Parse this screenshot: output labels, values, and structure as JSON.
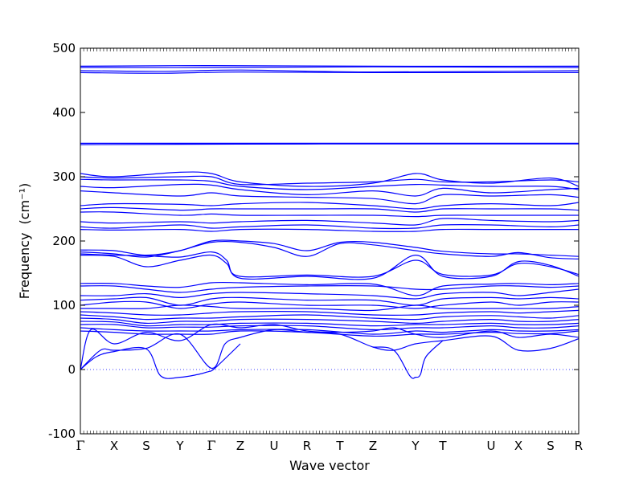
{
  "chart_data": {
    "type": "line",
    "title": "",
    "xlabel": "Wave vector",
    "ylabel": "Frequency",
    "ylabel_unit": "(cm⁻¹)",
    "ylim": [
      -100,
      500
    ],
    "yticks": [
      -100,
      0,
      100,
      200,
      300,
      400,
      500
    ],
    "xlim": [
      0,
      62
    ],
    "grid": false,
    "legend": "none",
    "line_color": "#0000ff",
    "zero_line": {
      "y": 0,
      "style": "dotted",
      "color": "#0000ff"
    },
    "high_symmetry_points": [
      {
        "label": "Γ",
        "x": 0
      },
      {
        "label": "X",
        "x": 4.2
      },
      {
        "label": "S",
        "x": 8.2
      },
      {
        "label": "Y",
        "x": 12.4
      },
      {
        "label": "Γ",
        "x": 16.3
      },
      {
        "label": "Z",
        "x": 19.9
      },
      {
        "label": "U",
        "x": 24.1
      },
      {
        "label": "R",
        "x": 28.2
      },
      {
        "label": "T",
        "x": 32.3
      },
      {
        "label": "Z",
        "x": 36.4
      },
      {
        "label": "Y",
        "x": 41.7
      },
      {
        "label": "T",
        "x": 45.1
      },
      {
        "label": "U",
        "x": 51.1
      },
      {
        "label": "X",
        "x": 54.5
      },
      {
        "label": "S",
        "x": 58.5
      },
      {
        "label": "R",
        "x": 62
      }
    ],
    "series": [
      {
        "x": [
          0,
          16.3,
          36.4,
          62
        ],
        "y": [
          472,
          473,
          472,
          472
        ]
      },
      {
        "x": [
          0,
          16.3,
          36.4,
          62
        ],
        "y": [
          470,
          470,
          471,
          470
        ]
      },
      {
        "x": [
          0,
          10,
          20,
          36.4,
          62
        ],
        "y": [
          465,
          464,
          466,
          463,
          465
        ]
      },
      {
        "x": [
          0,
          10,
          20,
          36.4,
          62
        ],
        "y": [
          462,
          461,
          463,
          462,
          462
        ]
      },
      {
        "x": [
          0,
          62
        ],
        "y": [
          352,
          352
        ]
      },
      {
        "x": [
          0,
          30,
          62
        ],
        "y": [
          350,
          351,
          351
        ]
      },
      {
        "x": [
          0,
          4.2,
          12.4,
          16.3,
          19.9,
          28.2,
          36.4,
          41.7,
          45.1,
          51.1,
          58.5,
          62
        ],
        "y": [
          305,
          300,
          307,
          305,
          292,
          285,
          290,
          305,
          295,
          290,
          298,
          285
        ]
      },
      {
        "x": [
          0,
          4.2,
          12.4,
          16.3,
          19.9,
          28.2,
          36.4,
          41.7,
          45.1,
          51.1,
          58.5,
          62
        ],
        "y": [
          300,
          298,
          300,
          300,
          288,
          290,
          292,
          296,
          292,
          292,
          295,
          292
        ]
      },
      {
        "x": [
          0,
          4.2,
          12.4,
          16.3,
          19.9,
          28.2,
          36.4,
          41.7,
          45.1,
          51.1,
          58.5,
          62
        ],
        "y": [
          296,
          295,
          295,
          293,
          285,
          280,
          285,
          288,
          287,
          285,
          285,
          280
        ]
      },
      {
        "x": [
          0,
          4.2,
          12.4,
          16.3,
          19.9,
          28.2,
          36.4,
          41.7,
          45.1,
          51.1,
          58.5,
          62
        ],
        "y": [
          285,
          283,
          288,
          287,
          280,
          272,
          278,
          270,
          282,
          275,
          280,
          282
        ]
      },
      {
        "x": [
          0,
          4.2,
          12.4,
          16.3,
          19.9,
          28.2,
          36.4,
          41.7,
          45.1,
          51.1,
          58.5,
          62
        ],
        "y": [
          278,
          275,
          270,
          275,
          270,
          268,
          266,
          258,
          272,
          270,
          272,
          268
        ]
      },
      {
        "x": [
          0,
          4.2,
          12.4,
          16.3,
          19.9,
          28.2,
          36.4,
          41.7,
          45.1,
          51.1,
          58.5,
          62
        ],
        "y": [
          255,
          258,
          257,
          255,
          258,
          260,
          255,
          250,
          255,
          258,
          255,
          260
        ]
      },
      {
        "x": [
          0,
          4.2,
          12.4,
          16.3,
          19.9,
          28.2,
          36.4,
          41.7,
          45.1,
          51.1,
          58.5,
          62
        ],
        "y": [
          250,
          252,
          248,
          250,
          250,
          250,
          250,
          245,
          250,
          250,
          250,
          248
        ]
      },
      {
        "x": [
          0,
          4.2,
          12.4,
          16.3,
          19.9,
          28.2,
          36.4,
          41.7,
          45.1,
          51.1,
          58.5,
          62
        ],
        "y": [
          245,
          245,
          240,
          242,
          240,
          240,
          240,
          238,
          240,
          240,
          240,
          240
        ]
      },
      {
        "x": [
          0,
          4.2,
          12.4,
          16.3,
          19.9,
          28.2,
          36.4,
          41.7,
          45.1,
          51.1,
          58.5,
          62
        ],
        "y": [
          230,
          228,
          230,
          228,
          230,
          232,
          228,
          225,
          235,
          232,
          230,
          232
        ]
      },
      {
        "x": [
          0,
          4.2,
          12.4,
          16.3,
          19.9,
          28.2,
          36.4,
          41.7,
          45.1,
          51.1,
          58.5,
          62
        ],
        "y": [
          222,
          220,
          225,
          220,
          222,
          225,
          220,
          220,
          225,
          225,
          222,
          225
        ]
      },
      {
        "x": [
          0,
          4.2,
          12.4,
          16.3,
          19.9,
          28.2,
          36.4,
          41.7,
          45.1,
          51.1,
          58.5,
          62
        ],
        "y": [
          218,
          217,
          218,
          215,
          218,
          218,
          215,
          215,
          218,
          218,
          218,
          218
        ]
      },
      {
        "x": [
          0,
          4.2,
          8.2,
          12.4,
          16.3,
          19.9,
          24.1,
          28.2,
          32.3,
          36.4,
          41.7,
          45.1,
          51.1,
          54.5,
          58.5,
          62
        ],
        "y": [
          186,
          185,
          178,
          185,
          200,
          200,
          196,
          185,
          198,
          198,
          190,
          184,
          180,
          180,
          178,
          176
        ]
      },
      {
        "x": [
          0,
          4.2,
          8.2,
          12.4,
          16.3,
          19.9,
          24.1,
          28.2,
          32.3,
          36.4,
          41.7,
          45.1,
          51.1,
          54.5,
          58.5,
          62
        ],
        "y": [
          183,
          180,
          175,
          185,
          198,
          198,
          190,
          176,
          196,
          194,
          185,
          180,
          176,
          182,
          174,
          172
        ]
      },
      {
        "x": [
          0,
          4.2,
          8.2,
          12.4,
          16.3,
          18.2,
          19.9,
          28.2,
          36.4,
          41.7,
          45.1,
          51.1,
          54.5,
          58.5,
          62
        ],
        "y": [
          180,
          178,
          177,
          175,
          183,
          170,
          142,
          145,
          142,
          178,
          145,
          145,
          168,
          162,
          145
        ]
      },
      {
        "x": [
          0,
          4.2,
          8.2,
          12.4,
          16.3,
          18.2,
          19.9,
          28.2,
          36.4,
          41.7,
          45.1,
          51.1,
          54.5,
          58.5,
          62
        ],
        "y": [
          178,
          176,
          160,
          170,
          178,
          165,
          145,
          147,
          145,
          170,
          148,
          147,
          165,
          160,
          148
        ]
      },
      {
        "x": [
          0,
          4.2,
          8.2,
          12.4,
          16.3,
          19.9,
          28.2,
          36.4,
          41.7,
          45.1,
          51.1,
          54.5,
          58.5,
          62
        ],
        "y": [
          134,
          134,
          130,
          128,
          135,
          135,
          132,
          133,
          115,
          130,
          133,
          134,
          132,
          134
        ]
      },
      {
        "x": [
          0,
          4.2,
          8.2,
          12.4,
          16.3,
          19.9,
          28.2,
          36.4,
          41.7,
          45.1,
          51.1,
          54.5,
          58.5,
          62
        ],
        "y": [
          130,
          130,
          125,
          120,
          125,
          128,
          130,
          130,
          125,
          125,
          130,
          130,
          128,
          130
        ]
      },
      {
        "x": [
          0,
          4.2,
          8.2,
          12.4,
          16.3,
          19.9,
          28.2,
          36.4,
          41.7,
          45.1,
          51.1,
          54.5,
          58.5,
          62
        ],
        "y": [
          115,
          115,
          118,
          112,
          118,
          120,
          118,
          115,
          110,
          118,
          120,
          115,
          120,
          125
        ]
      },
      {
        "x": [
          0,
          4.2,
          8.2,
          12.4,
          16.3,
          19.9,
          28.2,
          36.4,
          41.7,
          45.1,
          51.1,
          54.5,
          58.5,
          62
        ],
        "y": [
          108,
          110,
          112,
          100,
          110,
          112,
          108,
          108,
          100,
          110,
          112,
          110,
          112,
          110
        ]
      },
      {
        "x": [
          0,
          4.2,
          8.2,
          12.4,
          16.3,
          19.9,
          28.2,
          36.4,
          41.7,
          45.1,
          51.1,
          54.5,
          58.5,
          62
        ],
        "y": [
          100,
          105,
          105,
          95,
          102,
          105,
          100,
          100,
          95,
          100,
          105,
          100,
          105,
          105
        ]
      },
      {
        "x": [
          0,
          4.2,
          8.2,
          12.4,
          16.3,
          19.9,
          28.2,
          36.4,
          41.7,
          45.1,
          51.1,
          54.5,
          58.5,
          62
        ],
        "y": [
          95,
          95,
          95,
          100,
          98,
          95,
          95,
          92,
          100,
          95,
          95,
          95,
          95,
          98
        ]
      },
      {
        "x": [
          0,
          4.2,
          8.2,
          12.4,
          16.3,
          19.9,
          28.2,
          36.4,
          41.7,
          45.1,
          51.1,
          54.5,
          58.5,
          62
        ],
        "y": [
          90,
          88,
          85,
          85,
          88,
          90,
          90,
          85,
          85,
          88,
          90,
          88,
          90,
          92
        ]
      },
      {
        "x": [
          0,
          4.2,
          8.2,
          12.4,
          16.3,
          19.9,
          28.2,
          36.4,
          41.7,
          45.1,
          51.1,
          54.5,
          58.5,
          62
        ],
        "y": [
          85,
          82,
          78,
          80,
          80,
          82,
          85,
          80,
          78,
          82,
          84,
          82,
          80,
          84
        ]
      },
      {
        "x": [
          0,
          4.2,
          8.2,
          12.4,
          16.3,
          19.9,
          28.2,
          36.4,
          41.7,
          45.1,
          51.1,
          54.5,
          58.5,
          62
        ],
        "y": [
          80,
          78,
          72,
          75,
          75,
          78,
          78,
          75,
          72,
          75,
          78,
          75,
          75,
          78
        ]
      },
      {
        "x": [
          0,
          4.2,
          8.2,
          12.4,
          16.3,
          19.9,
          28.2,
          36.4,
          41.7,
          45.1,
          51.1,
          54.5,
          58.5,
          62
        ],
        "y": [
          75,
          74,
          68,
          70,
          70,
          72,
          72,
          68,
          70,
          70,
          72,
          70,
          70,
          72
        ]
      },
      {
        "x": [
          0,
          4.2,
          8.2,
          12.4,
          16.3,
          19.9,
          28.2,
          36.4,
          41.7,
          45.1,
          51.1,
          54.5,
          58.5,
          62
        ],
        "y": [
          70,
          70,
          65,
          66,
          66,
          68,
          68,
          62,
          65,
          65,
          68,
          65,
          65,
          68
        ]
      },
      {
        "x": [
          0,
          4.2,
          8.2,
          12.4,
          16.3,
          19.9,
          28.2,
          36.4,
          41.7,
          45.1,
          51.1,
          54.5,
          58.5,
          62
        ],
        "y": [
          65,
          62,
          60,
          60,
          60,
          62,
          62,
          55,
          60,
          58,
          62,
          60,
          60,
          62
        ]
      },
      {
        "x": [
          0,
          4.2,
          8.2,
          12.4,
          16.3,
          19.9,
          28.2,
          36.4,
          41.7,
          45.1,
          51.1,
          54.5,
          58.5,
          62
        ],
        "y": [
          60,
          58,
          55,
          55,
          55,
          60,
          58,
          52,
          55,
          55,
          58,
          56,
          56,
          60
        ]
      },
      {
        "x": [
          0,
          1.3,
          4.2,
          8.2,
          12.4,
          16.3,
          19.9,
          24.1,
          28.2,
          32.3,
          36.4,
          39,
          41.7,
          45.1,
          51.1,
          54.5,
          58.5,
          62
        ],
        "y": [
          0,
          62,
          40,
          58,
          45,
          70,
          65,
          70,
          60,
          58,
          60,
          65,
          55,
          50,
          60,
          50,
          55,
          50
        ]
      },
      {
        "x": [
          0,
          2.5,
          4.2,
          8.2,
          12.4,
          16.3,
          18,
          19.9,
          24.1,
          28.2,
          32.3,
          36.4,
          39,
          41.7,
          45.1,
          51.1,
          54.5,
          58.5,
          62
        ],
        "y": [
          0,
          30,
          30,
          33,
          55,
          2,
          40,
          50,
          62,
          58,
          55,
          35,
          30,
          40,
          45,
          52,
          30,
          33,
          48
        ]
      },
      {
        "x": [
          0,
          2,
          4.2,
          8.2,
          10,
          12.4,
          14.5,
          16,
          16.3,
          17,
          19.9
        ],
        "y": [
          0,
          20,
          28,
          32,
          -10,
          -12,
          -8,
          -3,
          -2,
          5,
          40
        ]
      },
      {
        "x": [
          36.4,
          39,
          41,
          41.7,
          42.3,
          43,
          45.1
        ],
        "y": [
          35,
          30,
          -10,
          -12,
          -8,
          20,
          45
        ]
      }
    ]
  }
}
